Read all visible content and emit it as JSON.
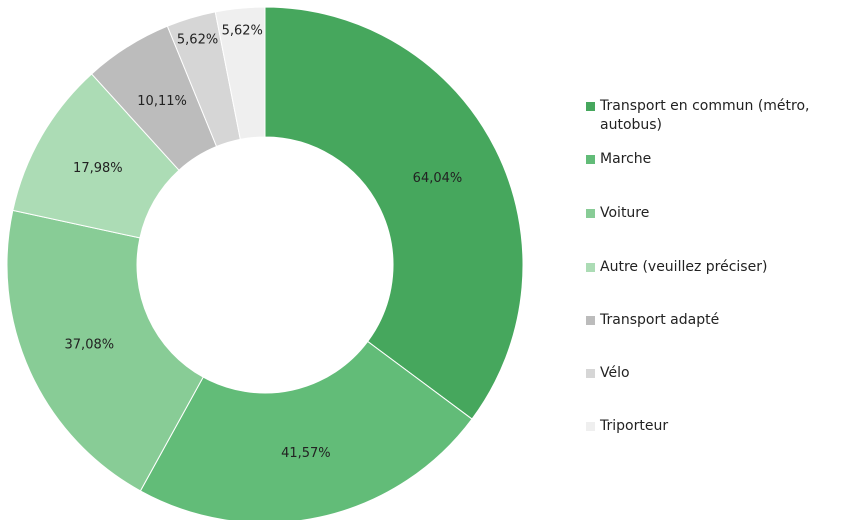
{
  "chart_data": {
    "type": "donut",
    "categories": [
      "Transport en commun (métro, autobus)",
      "Marche",
      "Voiture",
      "Autre (veuillez préciser)",
      "Transport adapté",
      "Vélo",
      "Triporteur"
    ],
    "values": [
      64.04,
      41.57,
      37.08,
      17.98,
      10.11,
      5.62,
      5.62
    ],
    "value_labels": [
      "64,04%",
      "41,57%",
      "37,08%",
      "17,98%",
      "10,11%",
      "5,62%",
      "5,62%"
    ],
    "colors": [
      "#46a75d",
      "#62bc78",
      "#88cc96",
      "#acdcb5",
      "#bcbcbc",
      "#d6d6d6",
      "#efefef"
    ],
    "legend": "right"
  }
}
